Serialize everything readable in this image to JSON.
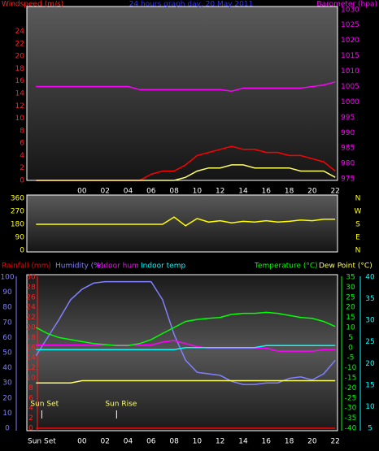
{
  "chart_data": [
    {
      "type": "line",
      "title": "24 hours graph day, 20 May 2011",
      "ylabel": "Windspeed (m/s)",
      "y2label": "Barometer (hpa)",
      "ycolor": "#ff2020",
      "y2color": "#ff00ff",
      "x": [
        -4,
        -3,
        -2,
        -1,
        0,
        1,
        2,
        3,
        4,
        5,
        6,
        7,
        8,
        9,
        10,
        11,
        12,
        13,
        14,
        15,
        16,
        17,
        18,
        19,
        20,
        21,
        22
      ],
      "xlim": [
        -4.8,
        22.2
      ],
      "xticks": [
        {
          "value": 0,
          "label": "00"
        },
        {
          "value": 2,
          "label": "02"
        },
        {
          "value": 4,
          "label": "04"
        },
        {
          "value": 6,
          "label": "06"
        },
        {
          "value": 8,
          "label": "08"
        },
        {
          "value": 10,
          "label": "10"
        },
        {
          "value": 12,
          "label": "12"
        },
        {
          "value": 14,
          "label": "14"
        },
        {
          "value": 16,
          "label": "16"
        },
        {
          "value": 18,
          "label": "18"
        },
        {
          "value": 20,
          "label": "20"
        },
        {
          "value": 22,
          "label": "22"
        }
      ],
      "ylim": [
        0,
        28
      ],
      "yticks": [
        0,
        2,
        4,
        6,
        8,
        10,
        12,
        14,
        16,
        18,
        20,
        22,
        24
      ],
      "y2lim": [
        974.5,
        1031
      ],
      "y2ticks": [
        975,
        980,
        985,
        990,
        995,
        1000,
        1005,
        1010,
        1015,
        1020,
        1025,
        1030
      ],
      "series": [
        {
          "color": "#ff0000",
          "values": [
            0,
            0,
            0,
            0,
            0,
            0,
            0,
            0,
            0,
            0,
            1,
            1.5,
            1.5,
            2.5,
            4,
            4.5,
            5,
            5.5,
            5,
            5,
            4.5,
            4.5,
            4,
            4,
            3.5,
            3,
            1.5
          ]
        },
        {
          "color": "#ffff66",
          "values": [
            0,
            0,
            0,
            0,
            0,
            0,
            0,
            0,
            0,
            0,
            0,
            0,
            0,
            0.5,
            1.5,
            2,
            2,
            2.5,
            2.5,
            2,
            2,
            2,
            2,
            1.5,
            1.5,
            1.5,
            0.5
          ]
        },
        {
          "color": "#ff00ff",
          "axis": "y2",
          "values": [
            1005,
            1005,
            1005,
            1005,
            1005,
            1005,
            1005,
            1005,
            1005,
            1004,
            1004,
            1004,
            1004,
            1004,
            1004,
            1004,
            1004,
            1003.5,
            1004.5,
            1004.5,
            1004.5,
            1004.5,
            1004.5,
            1004.5,
            1005,
            1005.5,
            1006.5
          ]
        }
      ]
    },
    {
      "type": "line",
      "ycolor": "#ffff00",
      "y2color": "#ffff00",
      "x": [
        -4,
        -3,
        -2,
        -1,
        0,
        1,
        2,
        3,
        4,
        5,
        6,
        7,
        8,
        9,
        10,
        11,
        12,
        13,
        14,
        15,
        16,
        17,
        18,
        19,
        20,
        21,
        22
      ],
      "xlim": [
        -4.8,
        22.2
      ],
      "ylim": [
        0,
        360
      ],
      "yticks": [
        0,
        90,
        180,
        270,
        360
      ],
      "y2lim": [
        0,
        360
      ],
      "y2ticks": [
        {
          "value": 360,
          "label": "N"
        },
        {
          "value": 270,
          "label": "W"
        },
        {
          "value": 180,
          "label": "S"
        },
        {
          "value": 90,
          "label": "E"
        },
        {
          "value": 0,
          "label": "N"
        }
      ],
      "series": [
        {
          "color": "#ffff00",
          "values": [
            180,
            180,
            180,
            180,
            180,
            180,
            180,
            180,
            180,
            180,
            180,
            180,
            230,
            170,
            220,
            195,
            205,
            190,
            200,
            195,
            205,
            195,
            200,
            210,
            205,
            215,
            215
          ]
        }
      ]
    },
    {
      "type": "line",
      "ycolor": "#8080ff",
      "y2color": "#00ff00",
      "y3color": "#ff2020",
      "y4color": "#00ffff",
      "x": [
        -4,
        -3,
        -2,
        -1,
        0,
        1,
        2,
        3,
        4,
        5,
        6,
        7,
        8,
        9,
        10,
        11,
        12,
        13,
        14,
        15,
        16,
        17,
        18,
        19,
        20,
        21,
        22
      ],
      "xlim": [
        -4.8,
        22.2
      ],
      "xticks": [
        {
          "value": -3.5,
          "label": "Sun Set"
        },
        {
          "value": 0,
          "label": "00"
        },
        {
          "value": 2,
          "label": "02"
        },
        {
          "value": 4,
          "label": "04"
        },
        {
          "value": 6,
          "label": "06"
        },
        {
          "value": 8,
          "label": "08"
        },
        {
          "value": 10,
          "label": "10"
        },
        {
          "value": 12,
          "label": "12"
        },
        {
          "value": 14,
          "label": "14"
        },
        {
          "value": 16,
          "label": "16"
        },
        {
          "value": 18,
          "label": "18"
        },
        {
          "value": 20,
          "label": "20"
        },
        {
          "value": 22,
          "label": "22"
        }
      ],
      "ylim": [
        0,
        100
      ],
      "yticks": [
        0,
        10,
        20,
        30,
        40,
        50,
        60,
        70,
        80,
        90,
        100
      ],
      "y2lim": [
        -40,
        35
      ],
      "y2ticks": [
        -40,
        -35,
        -30,
        -25,
        -20,
        -15,
        -10,
        -5,
        0,
        5,
        10,
        15,
        20,
        25,
        30,
        35
      ],
      "y3lim": [
        0,
        30
      ],
      "y3ticks": [
        0,
        2,
        4,
        6,
        8,
        10,
        12,
        14,
        16,
        18,
        20,
        22,
        24,
        26,
        28,
        30
      ],
      "y4lim": [
        5,
        40
      ],
      "y4ticks": [
        5,
        10,
        15,
        20,
        25,
        30,
        35,
        40
      ],
      "annotations": [
        {
          "text": "Sun Set",
          "x": -3.5
        },
        {
          "text": "Sun Rise",
          "x": 3
        }
      ],
      "series": [
        {
          "name": "Rainfall (mm)",
          "color": "#ff0000",
          "axis": "y3",
          "values": [
            0,
            0,
            0,
            0,
            0,
            0,
            0,
            0,
            0,
            0,
            0,
            0,
            0,
            0,
            0,
            0,
            0,
            0,
            0,
            0,
            0,
            0,
            0,
            0,
            0,
            0,
            0
          ]
        },
        {
          "name": "Humidity (%)",
          "color": "#8080ff",
          "values": [
            48,
            60,
            72,
            85,
            92,
            96,
            97,
            97,
            97,
            97,
            97,
            85,
            62,
            45,
            37,
            36,
            35,
            31,
            29,
            29,
            30,
            30,
            33,
            34,
            32,
            36,
            45
          ]
        },
        {
          "name": "Indoor hum",
          "color": "#ff00ff",
          "values": [
            55,
            55,
            55,
            55,
            55,
            55,
            55,
            55,
            55,
            55,
            55,
            57,
            58,
            56,
            54,
            53,
            53,
            53,
            53,
            53,
            53,
            51,
            51,
            51,
            51,
            52,
            52
          ]
        },
        {
          "name": "Indoor temp",
          "color": "#00ffff",
          "axis": "y2",
          "values": [
            -1,
            -1,
            -1,
            -1,
            -1,
            -1,
            -1,
            -1,
            -1,
            -1,
            -1,
            -1,
            -1,
            0,
            0,
            0,
            0,
            0,
            0,
            0,
            1,
            1,
            1,
            1,
            1,
            1,
            1
          ]
        },
        {
          "name": "Temperature (°C)",
          "color": "#00ff00",
          "axis": "y2",
          "values": [
            10,
            7,
            5,
            4,
            3,
            2,
            1.5,
            1,
            1,
            2,
            4,
            7,
            10,
            13,
            14,
            14.5,
            15,
            16.5,
            17,
            17,
            17.5,
            17,
            16,
            15,
            14.5,
            13,
            10.5
          ]
        },
        {
          "name": "Dew Point (°C)",
          "color": "#ffff66",
          "axis": "y4",
          "values": [
            15.5,
            15.5,
            15.5,
            15.5,
            16,
            16,
            16,
            16,
            16,
            16,
            16,
            16,
            16,
            16,
            16,
            16,
            16,
            16,
            16,
            16,
            16,
            16,
            16,
            16,
            16,
            16,
            16
          ]
        }
      ]
    }
  ]
}
